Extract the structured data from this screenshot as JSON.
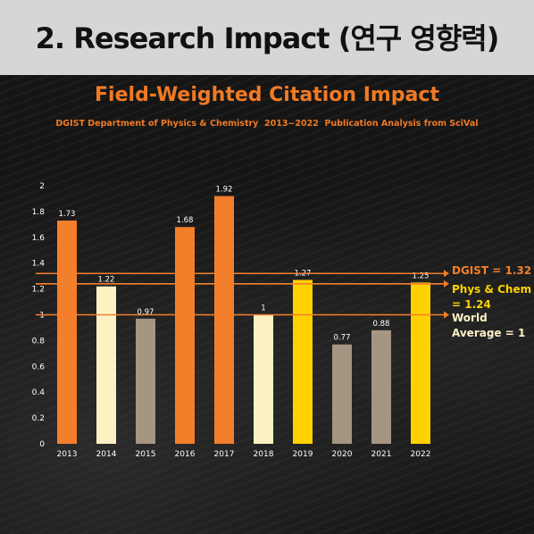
{
  "header": {
    "title": "2. Research Impact (연구 영향력)"
  },
  "chart_data": {
    "type": "bar",
    "title": "Field-Weighted Citation Impact",
    "subtitle": "DGIST Department of Physics & Chemistry  2013~2022  Publication Analysis from SciVal",
    "categories": [
      "2013",
      "2014",
      "2015",
      "2016",
      "2017",
      "2018",
      "2019",
      "2020",
      "2021",
      "2022"
    ],
    "values": [
      1.73,
      1.22,
      0.97,
      1.68,
      1.92,
      1,
      1.27,
      0.77,
      0.88,
      1.25
    ],
    "value_labels": [
      "1.73",
      "1.22",
      "0.97",
      "1.68",
      "1.92",
      "1",
      "1.27",
      "0.77",
      "0.88",
      "1.25"
    ],
    "bar_colors": [
      "#f47f2b",
      "#fdf1c4",
      "#a69581",
      "#f47f2b",
      "#f47f2b",
      "#fdf1c4",
      "#ffd100",
      "#a69581",
      "#a69581",
      "#ffd100"
    ],
    "ylim": [
      0,
      2
    ],
    "yticks": [
      "0",
      "0.2",
      "0.4",
      "0.6",
      "0.8",
      "1",
      "1.2",
      "1.4",
      "1.6",
      "1.8",
      "2"
    ],
    "ytick_values": [
      0,
      0.2,
      0.4,
      0.6,
      0.8,
      1,
      1.2,
      1.4,
      1.6,
      1.8,
      2
    ],
    "grid": false,
    "reference_lines": [
      {
        "value": 1.32,
        "label_lines": [
          "DGIST = 1.32"
        ],
        "color": "#f47f2b",
        "label_color": "#f47f2b"
      },
      {
        "value": 1.24,
        "label_lines": [
          "Phys & Chem",
          "= 1.24"
        ],
        "color": "#f47f2b",
        "label_color": "#ffd100"
      },
      {
        "value": 1,
        "label_lines": [
          "World",
          "Average = 1"
        ],
        "color": "#f47f2b",
        "label_color": "#fdf1c4"
      }
    ]
  }
}
